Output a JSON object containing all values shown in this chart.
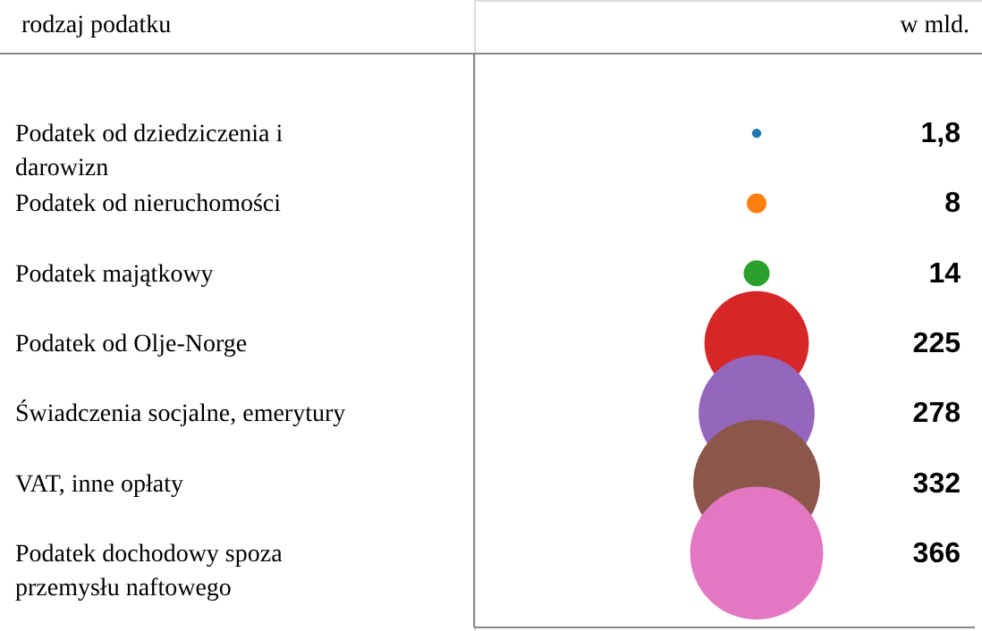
{
  "chart_data": {
    "type": "other",
    "ylabel": "rodzaj podatku",
    "annotations": [
      "w mld."
    ],
    "categories": [
      "Podatek od dziedziczenia i darowizn",
      "Podatek od nieruchomości",
      "Podatek majątkowy",
      "Podatek od Olje-Norge",
      "Świadczenia socjalne, emerytury",
      "VAT, inne opłaty",
      "Podatek dochodowy spoza przemysłu naftowego"
    ],
    "values": [
      1.8,
      8,
      14,
      225,
      278,
      332,
      366
    ],
    "colors": [
      "#1f77b4",
      "#ff7f0e",
      "#2ca02c",
      "#d62728",
      "#9467bd",
      "#8c564b",
      "#e377c2"
    ],
    "value_labels": [
      "1,8",
      "8",
      "14",
      "225",
      "278",
      "332",
      "366"
    ]
  }
}
